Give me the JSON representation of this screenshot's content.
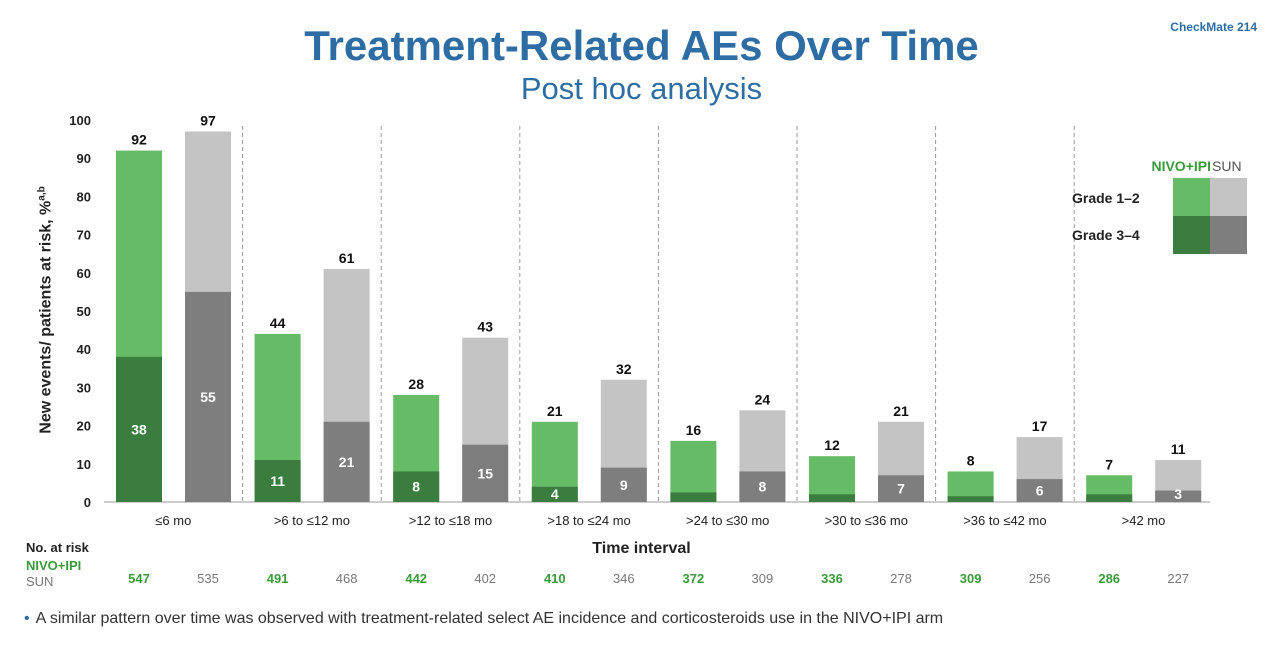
{
  "badge": "CheckMate 214",
  "title": "Treatment-Related AEs Over Time",
  "subtitle": "Post hoc analysis",
  "y_axis_label": "New events/ patients at risk, %",
  "y_axis_label_sup": "a,b",
  "x_axis_label": "Time interval",
  "legend": {
    "series_a": "NIVO+IPI",
    "series_b": "SUN",
    "row1": "Grade 1–2",
    "row2": "Grade 3–4"
  },
  "at_risk": {
    "title": "No. at risk",
    "series_a_label": "NIVO+IPI",
    "series_b_label": "SUN",
    "nivo_ipi": [
      "547",
      "491",
      "442",
      "410",
      "372",
      "336",
      "309",
      "286"
    ],
    "sun": [
      "535",
      "468",
      "402",
      "346",
      "309",
      "278",
      "256",
      "227"
    ]
  },
  "colors": {
    "nivo_grade12": "#66bb66",
    "nivo_grade34": "#3a7d3f",
    "sun_grade12": "#c4c4c4",
    "sun_grade34": "#7e7e7e",
    "title_blue": "#2e6da4"
  },
  "footnote": "A similar pattern over time was observed with treatment-related select AE incidence and corticosteroids use in the NIVO+IPI arm",
  "chart_data": {
    "type": "bar",
    "stacked": true,
    "categories": [
      "≤6 mo",
      ">6 to ≤12 mo",
      ">12 to ≤18 mo",
      ">18 to ≤24 mo",
      ">24 to ≤30 mo",
      ">30 to ≤36 mo",
      ">36 to ≤42 mo",
      ">42 mo"
    ],
    "ylim": [
      0,
      100
    ],
    "yticks": [
      0,
      10,
      20,
      30,
      40,
      50,
      60,
      70,
      80,
      90,
      100
    ],
    "series": [
      {
        "name": "NIVO+IPI",
        "total": [
          92,
          44,
          28,
          21,
          16,
          12,
          8,
          7
        ],
        "grade34": [
          38,
          11,
          8,
          4,
          2.5,
          2,
          1.5,
          2
        ],
        "grade34_labels": [
          "38",
          "11",
          "8",
          "4",
          "",
          "",
          "",
          ""
        ]
      },
      {
        "name": "SUN",
        "total": [
          97,
          61,
          43,
          32,
          24,
          21,
          17,
          11
        ],
        "grade34": [
          55,
          21,
          15,
          9,
          8,
          7,
          6,
          3
        ],
        "grade34_labels": [
          "55",
          "21",
          "15",
          "9",
          "8",
          "7",
          "6",
          "3"
        ]
      }
    ],
    "grid": false,
    "legend_position": "right"
  }
}
